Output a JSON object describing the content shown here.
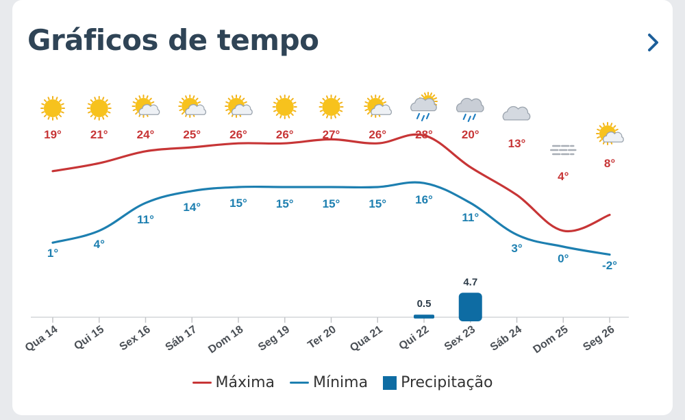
{
  "header": {
    "title": "Gráficos de tempo",
    "next_icon": "chevron-right-icon"
  },
  "colors": {
    "max": "#c73536",
    "min": "#1d7fb0",
    "precip": "#0e6ca3"
  },
  "chart_data": {
    "type": "line",
    "title": "Gráficos de tempo",
    "categories": [
      "Qua 14",
      "Qui 15",
      "Sex 16",
      "Sáb 17",
      "Dom 18",
      "Seg 19",
      "Ter 20",
      "Qua 21",
      "Qui 22",
      "Sex 23",
      "Sáb 24",
      "Dom 25",
      "Seg 26"
    ],
    "weather_icons": [
      "sun-icon",
      "sun-icon",
      "partly-cloudy-icon",
      "partly-cloudy-icon",
      "partly-cloudy-icon",
      "sun-icon",
      "sun-icon",
      "partly-cloudy-icon",
      "thunder-rain-icon",
      "rain-cloud-icon",
      "cloud-icon",
      "fog-icon",
      "partly-cloudy-icon"
    ],
    "series": [
      {
        "name": "Máxima",
        "values": [
          19,
          21,
          24,
          25,
          26,
          26,
          27,
          26,
          28,
          20,
          13,
          4,
          8
        ],
        "labels": [
          "19°",
          "21°",
          "24°",
          "25°",
          "26°",
          "26°",
          "27°",
          "26°",
          "28°",
          "20°",
          "13°",
          "4°",
          "8°"
        ]
      },
      {
        "name": "Mínima",
        "values": [
          1,
          4,
          11,
          14,
          15,
          15,
          15,
          15,
          16,
          11,
          3,
          0,
          -2
        ],
        "labels": [
          "1°",
          "4°",
          "11°",
          "14°",
          "15°",
          "15°",
          "15°",
          "15°",
          "16°",
          "11°",
          "3°",
          "0°",
          "-2°"
        ]
      },
      {
        "name": "Precipitação",
        "type": "bar",
        "values": [
          0,
          0,
          0,
          0,
          0,
          0,
          0,
          0,
          0.5,
          4.7,
          0,
          0,
          0
        ],
        "labels": [
          "",
          "",
          "",
          "",
          "",
          "",
          "",
          "",
          "0.5",
          "4.7",
          "",
          "",
          ""
        ]
      }
    ],
    "legend": [
      "Máxima",
      "Mínima",
      "Precipitação"
    ],
    "legend_position": "bottom-center",
    "grid": false
  }
}
